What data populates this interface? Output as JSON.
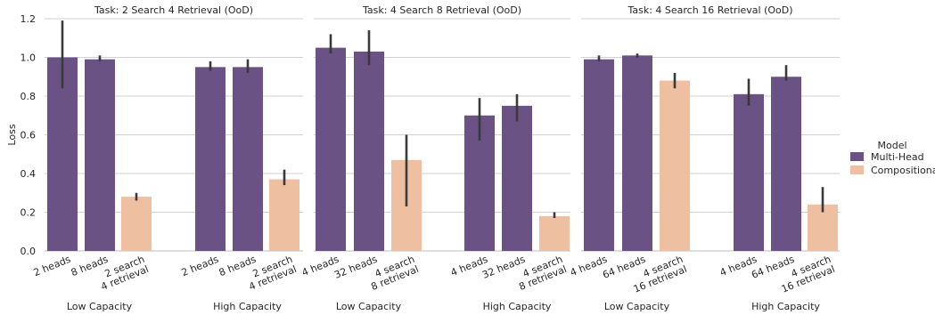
{
  "ylabel": "Loss",
  "yticks": [
    0.0,
    0.2,
    0.4,
    0.6,
    0.8,
    1.0,
    1.2
  ],
  "ylim": [
    0,
    1.2
  ],
  "colors": {
    "multi_head": "#6a5285",
    "compositional": "#efbfa2",
    "grid": "#cfcfd6",
    "errorbar": "#3a3a3a"
  },
  "legend": {
    "title": "Model",
    "placement": "right",
    "entries": [
      {
        "label": "Multi-Head",
        "color": "#6a5285"
      },
      {
        "label": "Compositional",
        "color": "#efbfa2"
      }
    ]
  },
  "chart_data": [
    {
      "type": "bar",
      "title": "Task: 2 Search 4 Retrieval (OoD)",
      "groups": [
        {
          "label": "Low Capacity",
          "bars": [
            {
              "label": "2 heads",
              "model": "Multi-Head",
              "value": 1.0,
              "err": [
                0.84,
                1.19
              ]
            },
            {
              "label": "8 heads",
              "model": "Multi-Head",
              "value": 0.99,
              "err": [
                0.98,
                1.01
              ]
            },
            {
              "label": "2 search\n4 retrieval",
              "model": "Compositional",
              "value": 0.28,
              "err": [
                0.26,
                0.3
              ]
            }
          ]
        },
        {
          "label": "High Capacity",
          "bars": [
            {
              "label": "2 heads",
              "model": "Multi-Head",
              "value": 0.95,
              "err": [
                0.93,
                0.98
              ]
            },
            {
              "label": "8 heads",
              "model": "Multi-Head",
              "value": 0.95,
              "err": [
                0.92,
                0.99
              ]
            },
            {
              "label": "2 search\n4 retrieval",
              "model": "Compositional",
              "value": 0.37,
              "err": [
                0.34,
                0.42
              ]
            }
          ]
        }
      ]
    },
    {
      "type": "bar",
      "title": "Task: 4 Search 8 Retrieval (OoD)",
      "groups": [
        {
          "label": "Low Capacity",
          "bars": [
            {
              "label": "4 heads",
              "model": "Multi-Head",
              "value": 1.05,
              "err": [
                1.02,
                1.12
              ]
            },
            {
              "label": "32 heads",
              "model": "Multi-Head",
              "value": 1.03,
              "err": [
                0.96,
                1.14
              ]
            },
            {
              "label": "4 search\n8 retrieval",
              "model": "Compositional",
              "value": 0.47,
              "err": [
                0.23,
                0.6
              ]
            }
          ]
        },
        {
          "label": "High Capacity",
          "bars": [
            {
              "label": "4 heads",
              "model": "Multi-Head",
              "value": 0.7,
              "err": [
                0.57,
                0.79
              ]
            },
            {
              "label": "32 heads",
              "model": "Multi-Head",
              "value": 0.75,
              "err": [
                0.67,
                0.81
              ]
            },
            {
              "label": "4 search\n8 retrieval",
              "model": "Compositional",
              "value": 0.18,
              "err": [
                0.17,
                0.2
              ]
            }
          ]
        }
      ]
    },
    {
      "type": "bar",
      "title": "Task: 4 Search 16 Retrieval (OoD)",
      "groups": [
        {
          "label": "Low Capacity",
          "bars": [
            {
              "label": "4 heads",
              "model": "Multi-Head",
              "value": 0.99,
              "err": [
                0.98,
                1.01
              ]
            },
            {
              "label": "64 heads",
              "model": "Multi-Head",
              "value": 1.01,
              "err": [
                1.0,
                1.02
              ]
            },
            {
              "label": "4 search\n16 retrieval",
              "model": "Compositional",
              "value": 0.88,
              "err": [
                0.84,
                0.92
              ]
            }
          ]
        },
        {
          "label": "High Capacity",
          "bars": [
            {
              "label": "4 heads",
              "model": "Multi-Head",
              "value": 0.81,
              "err": [
                0.75,
                0.89
              ]
            },
            {
              "label": "64 heads",
              "model": "Multi-Head",
              "value": 0.9,
              "err": [
                0.88,
                0.96
              ]
            },
            {
              "label": "4 search\n16 retrieval",
              "model": "Compositional",
              "value": 0.24,
              "err": [
                0.2,
                0.33
              ]
            }
          ]
        }
      ]
    }
  ]
}
